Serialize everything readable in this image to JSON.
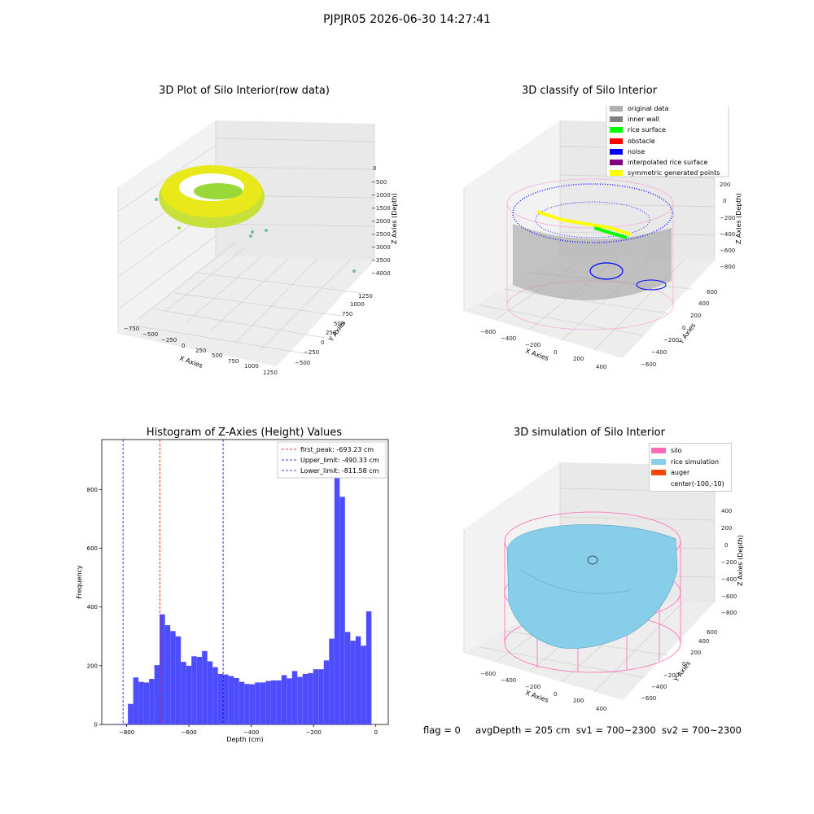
{
  "figure": {
    "suptitle": "PJPJR05 2026-06-30 14:27:41",
    "status": {
      "flag": "flag = 0",
      "avg_depth": "avgDepth = 205 cm",
      "sv1": "sv1 = 700~2300",
      "sv2": "sv2 = 700~2300"
    }
  },
  "colors": {
    "hist_bar": "#4d4dff",
    "first_peak_line": "#ff0000",
    "limit_line": "#0000ff",
    "pane_grey": "#f0f0f0",
    "grid": "#d0d0d0"
  },
  "panels": {
    "raw": {
      "title": "3D Plot of Silo Interior(row data)",
      "x_label": "X Axies",
      "y_label": "Y Axies",
      "z_label": "Z Axies (Depth)",
      "x_ticks": [
        "−750",
        "−500",
        "−250",
        "0",
        "250",
        "500",
        "750",
        "1000",
        "1250"
      ],
      "y_ticks": [
        "−500",
        "−250",
        "0",
        "250",
        "500",
        "750",
        "1000",
        "1250"
      ],
      "z_ticks": [
        "0",
        "−500",
        "−1000",
        "−1500",
        "−2000",
        "−2500",
        "−3000",
        "−3500",
        "−4000"
      ]
    },
    "classify": {
      "title": "3D classify of Silo Interior",
      "x_label": "X Axies",
      "y_label": "Y Axies",
      "z_label": "Z Axies (Depth)",
      "x_ticks": [
        "−600",
        "−400",
        "−200",
        "0",
        "200",
        "400"
      ],
      "y_ticks": [
        "−600",
        "−400",
        "−200",
        "0",
        "200",
        "400",
        "600"
      ],
      "z_ticks": [
        "200",
        "0",
        "−200",
        "−400",
        "−600",
        "−800"
      ],
      "legend": [
        {
          "label": "original data",
          "color": "#b0b0b0"
        },
        {
          "label": "inner wall",
          "color": "#808080"
        },
        {
          "label": "rice surface",
          "color": "#00ff00"
        },
        {
          "label": "obstacle",
          "color": "#ff0000"
        },
        {
          "label": "noise",
          "color": "#0000ff"
        },
        {
          "label": "interpolated rice surface",
          "color": "#800080"
        },
        {
          "label": "symmetric generated points",
          "color": "#ffff00"
        }
      ]
    },
    "simulation": {
      "title": "3D simulation of Silo Interior",
      "x_label": "X Axies",
      "y_label": "Y Axies",
      "z_label": "Z Axies (Depth)",
      "x_ticks": [
        "−600",
        "−400",
        "−200",
        "0",
        "200",
        "400"
      ],
      "y_ticks": [
        "−600",
        "−400",
        "−200",
        "0",
        "200",
        "400",
        "600"
      ],
      "z_ticks": [
        "400",
        "200",
        "0",
        "−200",
        "−400",
        "−600",
        "−800"
      ],
      "legend": [
        {
          "label": "silo",
          "color": "#ff69b4"
        },
        {
          "label": "rice simulation",
          "color": "#87ceeb"
        },
        {
          "label": "auger",
          "color": "#ff4500"
        },
        {
          "label": "center(-100,-10)",
          "color": ""
        }
      ]
    }
  },
  "chart_data": {
    "type": "bar",
    "title": "Histogram of Z-Axies (Height) Values",
    "xlabel": "Depth (cm)",
    "ylabel": "Frequency",
    "xlim": [
      -880,
      40
    ],
    "ylim": [
      0,
      970
    ],
    "x_ticks": [
      -800,
      -600,
      -400,
      -200,
      0
    ],
    "x_tick_labels": [
      "−800",
      "−600",
      "−400",
      "−200",
      "0"
    ],
    "y_ticks": [
      0,
      200,
      400,
      600,
      800
    ],
    "y_tick_labels": [
      "0",
      "200",
      "400",
      "600",
      "800"
    ],
    "bin_width": 17,
    "bin_starts": [
      -830,
      -813,
      -796,
      -779,
      -762,
      -745,
      -728,
      -711,
      -694,
      -677,
      -660,
      -643,
      -626,
      -609,
      -592,
      -575,
      -558,
      -541,
      -524,
      -507,
      -490,
      -473,
      -456,
      -439,
      -422,
      -405,
      -388,
      -371,
      -354,
      -337,
      -320,
      -303,
      -286,
      -269,
      -252,
      -235,
      -218,
      -201,
      -184,
      -167,
      -150,
      -133,
      -116,
      -99,
      -82,
      -65,
      -48,
      -31,
      -14
    ],
    "counts": [
      2,
      3,
      70,
      160,
      145,
      143,
      155,
      202,
      375,
      338,
      318,
      300,
      213,
      200,
      232,
      230,
      250,
      215,
      195,
      172,
      170,
      165,
      158,
      145,
      138,
      137,
      143,
      143,
      148,
      150,
      150,
      168,
      157,
      182,
      162,
      172,
      175,
      188,
      188,
      218,
      292,
      940,
      775,
      315,
      285,
      300,
      268,
      385,
      0
    ],
    "lines": [
      {
        "label": "first_peak: -693.23 cm",
        "x": -693.23,
        "color": "#ff0000"
      },
      {
        "label": "Upper_limit: -490.33 cm",
        "x": -490.33,
        "color": "#0000ff"
      },
      {
        "label": "Lower_limit: -811.58 cm",
        "x": -811.58,
        "color": "#0000ff"
      }
    ]
  }
}
